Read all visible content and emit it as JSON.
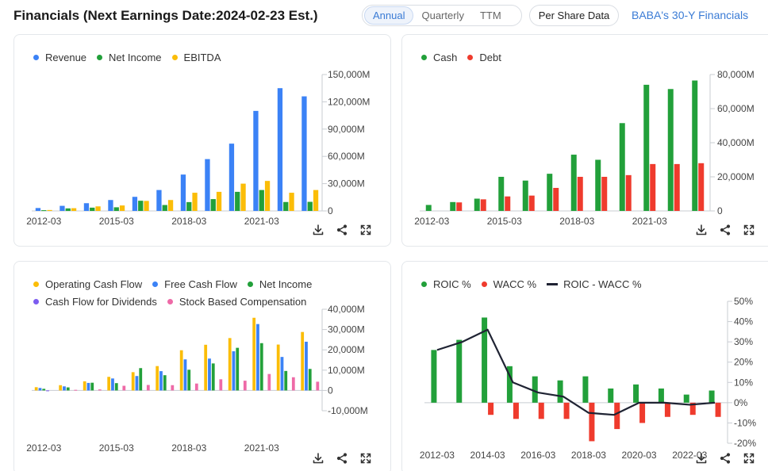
{
  "header": {
    "title": "Financials (Next Earnings Date:2024-02-23 Est.)",
    "tabs": [
      {
        "label": "Annual",
        "active": true
      },
      {
        "label": "Quarterly",
        "active": false
      },
      {
        "label": "TTM",
        "active": false
      }
    ],
    "per_share_label": "Per Share Data",
    "link_label": "BABA's 30-Y Financials"
  },
  "icons": [
    "download-icon",
    "share-icon",
    "expand-icon"
  ],
  "chart_data": [
    {
      "type": "bar",
      "categories": [
        "2012-03",
        "2013-03",
        "2014-03",
        "2015-03",
        "2016-03",
        "2017-03",
        "2018-03",
        "2019-03",
        "2020-03",
        "2021-03",
        "2022-03",
        "2023-03"
      ],
      "x_tick_labels": [
        "2012-03",
        "2015-03",
        "2018-03",
        "2021-03"
      ],
      "series": [
        {
          "name": "Revenue",
          "color": "#3b82f6",
          "values": [
            3200,
            5600,
            8500,
            12000,
            15500,
            23000,
            40000,
            57000,
            74000,
            110000,
            135000,
            126000
          ]
        },
        {
          "name": "Net Income",
          "color": "#22a03a",
          "values": [
            800,
            2800,
            3600,
            4000,
            11200,
            6500,
            9700,
            13000,
            21000,
            23000,
            9800,
            10000
          ]
        },
        {
          "name": "EBITDA",
          "color": "#fbbd08",
          "values": [
            1000,
            3000,
            5000,
            6000,
            11000,
            12000,
            20000,
            21000,
            30000,
            33000,
            20000,
            23000
          ]
        }
      ],
      "y_ticks": [
        "150,000M",
        "120,000M",
        "90,000M",
        "60,000M",
        "30,000M",
        "0"
      ],
      "ylim": [
        0,
        150000
      ],
      "legend": "top-left",
      "axis": "right",
      "grid": false
    },
    {
      "type": "bar",
      "categories": [
        "2012-03",
        "2013-03",
        "2014-03",
        "2015-03",
        "2016-03",
        "2017-03",
        "2018-03",
        "2019-03",
        "2020-03",
        "2021-03",
        "2022-03",
        "2023-03"
      ],
      "x_tick_labels": [
        "2012-03",
        "2015-03",
        "2018-03",
        "2021-03"
      ],
      "series": [
        {
          "name": "Cash",
          "color": "#22a03a",
          "values": [
            3500,
            5200,
            7200,
            20000,
            17800,
            21800,
            33000,
            30000,
            51500,
            74000,
            71500,
            76500
          ]
        },
        {
          "name": "Debt",
          "color": "#ef3b2d",
          "values": [
            0,
            5000,
            6800,
            8500,
            9000,
            13500,
            20000,
            20000,
            21000,
            27500,
            27500,
            28000
          ]
        }
      ],
      "y_ticks": [
        "80,000M",
        "60,000M",
        "40,000M",
        "20,000M",
        "0"
      ],
      "ylim": [
        0,
        80000
      ],
      "legend": "top-left",
      "axis": "right",
      "grid": false
    },
    {
      "type": "bar",
      "categories": [
        "2012-03",
        "2013-03",
        "2014-03",
        "2015-03",
        "2016-03",
        "2017-03",
        "2018-03",
        "2019-03",
        "2020-03",
        "2021-03",
        "2022-03",
        "2023-03"
      ],
      "x_tick_labels": [
        "2012-03",
        "2015-03",
        "2018-03",
        "2021-03"
      ],
      "series": [
        {
          "name": "Operating Cash Flow",
          "color": "#fbbd08",
          "values": [
            1600,
            2600,
            4500,
            6700,
            9000,
            12000,
            19800,
            22500,
            25800,
            35800,
            22600,
            28800
          ]
        },
        {
          "name": "Free Cash Flow",
          "color": "#3b82f6",
          "values": [
            1200,
            2000,
            3700,
            5900,
            7100,
            9500,
            15300,
            15700,
            19300,
            32700,
            16500,
            24000
          ]
        },
        {
          "name": "Net Income",
          "color": "#22a03a",
          "values": [
            800,
            1500,
            3800,
            3600,
            11000,
            7500,
            10200,
            13300,
            21000,
            23300,
            9600,
            10600
          ]
        },
        {
          "name": "Cash Flow for Dividends",
          "color": "#7c5cf0",
          "values": [
            -300,
            0,
            0,
            0,
            0,
            0,
            0,
            0,
            0,
            0,
            0,
            0
          ]
        },
        {
          "name": "Stock Based Compensation",
          "color": "#ee6aa7",
          "values": [
            0,
            300,
            500,
            2300,
            2700,
            2600,
            3400,
            5500,
            4800,
            8100,
            6500,
            4300
          ]
        }
      ],
      "y_ticks": [
        "40,000M",
        "30,000M",
        "20,000M",
        "10,000M",
        "0",
        "-10,000M"
      ],
      "ylim": [
        -10000,
        40000
      ],
      "legend": "top-left",
      "axis": "right",
      "grid": false
    },
    {
      "type": "bar",
      "categories": [
        "2012-03",
        "2013-03",
        "2014-03",
        "2015-03",
        "2016-03",
        "2017-03",
        "2018-03",
        "2019-03",
        "2020-03",
        "2021-03",
        "2022-03",
        "2023-03"
      ],
      "x_tick_labels": [
        "2012-03",
        "2014-03",
        "2016-03",
        "2018-03",
        "2020-03",
        "2022-03"
      ],
      "series": [
        {
          "name": "ROIC %",
          "color": "#22a03a",
          "values": [
            26,
            31,
            42,
            18,
            13,
            11,
            13,
            7,
            9,
            7,
            4,
            6
          ]
        },
        {
          "name": "WACC %",
          "color": "#ef3b2d",
          "values": [
            0,
            0,
            -6,
            -8,
            -8,
            -8,
            -19,
            -13,
            -10,
            -7,
            -6,
            -7
          ]
        },
        {
          "name": "ROIC - WACC %",
          "type": "line",
          "color": "#1f2333",
          "values": [
            26,
            30,
            36,
            10,
            5,
            3,
            -5,
            -6,
            0,
            0,
            -1,
            0
          ]
        }
      ],
      "y_ticks": [
        "50%",
        "40%",
        "30%",
        "20%",
        "10%",
        "0%",
        "-10%",
        "-20%"
      ],
      "ylim": [
        -20,
        50
      ],
      "legend": "top-left",
      "axis": "right",
      "grid": false
    }
  ]
}
